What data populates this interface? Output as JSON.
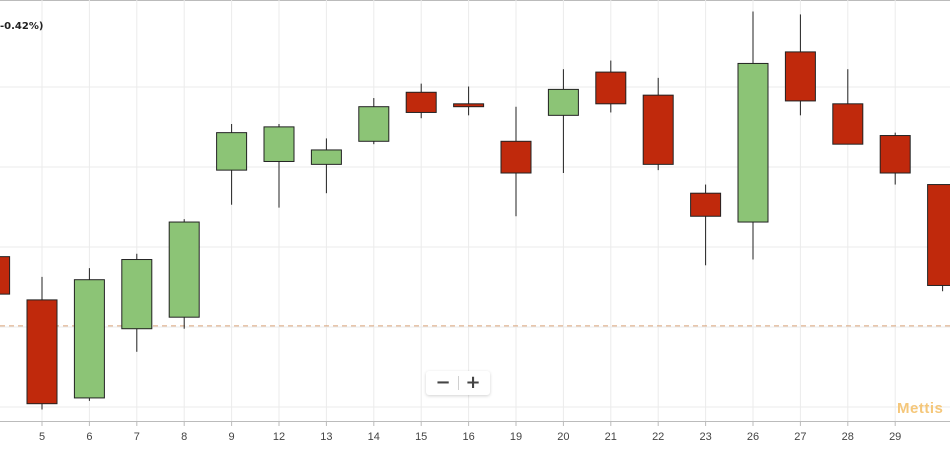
{
  "change_label": "-0.42%)",
  "zoom": {
    "minus": "−",
    "plus": "+"
  },
  "watermark": "Mettis",
  "colors": {
    "up": "#8cc476",
    "down": "#c0290c",
    "reference_line": "#d9a47a",
    "grid": "#ebebeb",
    "axis": "#bbbbbb",
    "tick_text": "#444444"
  },
  "chart_data": {
    "type": "candlestick",
    "categories": [
      "5",
      "6",
      "7",
      "8",
      "9",
      "12",
      "13",
      "14",
      "15",
      "16",
      "19",
      "20",
      "21",
      "22",
      "23",
      "26",
      "27",
      "28",
      "29"
    ],
    "series": [
      {
        "values": [
          {
            "x": "5",
            "open": 45.5,
            "high": 46.3,
            "low": 41.7,
            "close": 41.9
          },
          {
            "x": "6",
            "open": 42.1,
            "high": 46.6,
            "low": 42.0,
            "close": 46.2
          },
          {
            "x": "7",
            "open": 44.5,
            "high": 47.1,
            "low": 43.7,
            "close": 46.9
          },
          {
            "x": "8",
            "open": 44.9,
            "high": 48.3,
            "low": 44.5,
            "close": 48.2
          },
          {
            "x": "9",
            "open": 50.0,
            "high": 51.6,
            "low": 48.8,
            "close": 51.3
          },
          {
            "x": "12",
            "open": 50.3,
            "high": 51.6,
            "low": 48.7,
            "close": 51.5
          },
          {
            "x": "13",
            "open": 50.2,
            "high": 51.1,
            "low": 49.2,
            "close": 50.7
          },
          {
            "x": "14",
            "open": 51.0,
            "high": 52.5,
            "low": 50.9,
            "close": 52.2
          },
          {
            "x": "15",
            "open": 52.7,
            "high": 53.0,
            "low": 51.8,
            "close": 52.0
          },
          {
            "x": "16",
            "open": 52.3,
            "high": 52.9,
            "low": 51.9,
            "close": 52.2
          },
          {
            "x": "19",
            "open": 51.0,
            "high": 52.2,
            "low": 48.4,
            "close": 49.9
          },
          {
            "x": "20",
            "open": 51.9,
            "high": 53.5,
            "low": 49.9,
            "close": 52.8
          },
          {
            "x": "21",
            "open": 53.4,
            "high": 53.8,
            "low": 52.0,
            "close": 52.3
          },
          {
            "x": "22",
            "open": 52.6,
            "high": 53.2,
            "low": 50.0,
            "close": 50.2
          },
          {
            "x": "23",
            "open": 49.2,
            "high": 49.5,
            "low": 46.7,
            "close": 48.4
          },
          {
            "x": "26",
            "open": 48.2,
            "high": 55.5,
            "low": 46.9,
            "close": 53.7
          },
          {
            "x": "27",
            "open": 54.1,
            "high": 55.4,
            "low": 51.9,
            "close": 52.4
          },
          {
            "x": "28",
            "open": 52.3,
            "high": 53.5,
            "low": 50.9,
            "close": 50.9
          },
          {
            "x": "29",
            "open": 51.2,
            "high": 51.3,
            "low": 49.5,
            "close": 49.9
          }
        ]
      }
    ],
    "partial_candles": [
      {
        "position": "left-edge",
        "open": 47.0,
        "high": 47.3,
        "low": 45.6,
        "close": 45.7
      },
      {
        "position": "right-edge",
        "open": 49.5,
        "high": 49.5,
        "low": 45.8,
        "close": 46.0
      }
    ],
    "reference_line": {
      "value": 44.6,
      "style": "dashed"
    },
    "ylim": [
      41.3,
      55.9
    ],
    "grid": true,
    "xlabel": "",
    "ylabel": ""
  }
}
